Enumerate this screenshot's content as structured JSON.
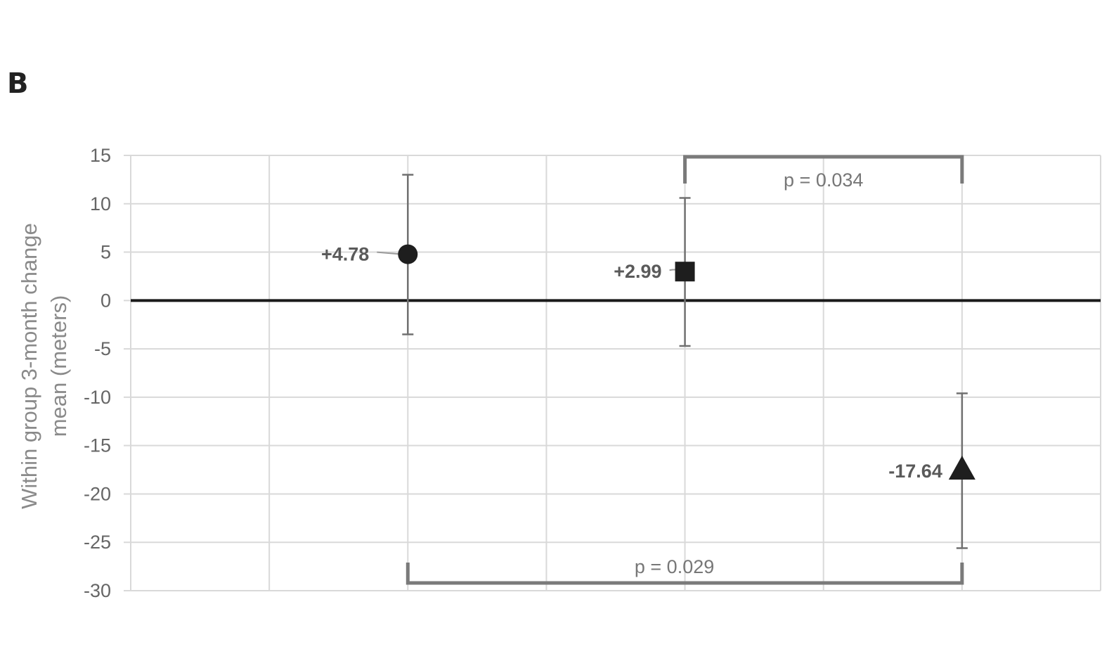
{
  "panel_label": "B",
  "chart_data": {
    "type": "scatter",
    "ylabel": "Within group 3-month change mean (meters)",
    "ylabel_lines": [
      "Within group 3-month change",
      "mean (meters)"
    ],
    "ylim": [
      -30,
      15
    ],
    "ytick_step": 5,
    "yticks": [
      "15",
      "10",
      "5",
      "0",
      "-5",
      "-10",
      "-15",
      "-20",
      "-25",
      "-30"
    ],
    "x_slots": 7,
    "grid": true,
    "zero_line": true,
    "points": [
      {
        "slot": 2,
        "marker": "circle",
        "value": 4.78,
        "label": "+4.78",
        "err_low": -3.5,
        "err_high": 13.0
      },
      {
        "slot": 4,
        "marker": "square",
        "value": 2.99,
        "label": "+2.99",
        "err_low": -4.7,
        "err_high": 10.6
      },
      {
        "slot": 6,
        "marker": "triangle",
        "value": -17.64,
        "label": "-17.64",
        "err_low": -25.6,
        "err_high": -9.6
      }
    ],
    "comparisons": [
      {
        "from_slot": 4,
        "to_slot": 6,
        "label": "p = 0.034",
        "position": "top"
      },
      {
        "from_slot": 2,
        "to_slot": 6,
        "label": "p = 0.029",
        "position": "bottom"
      }
    ]
  }
}
